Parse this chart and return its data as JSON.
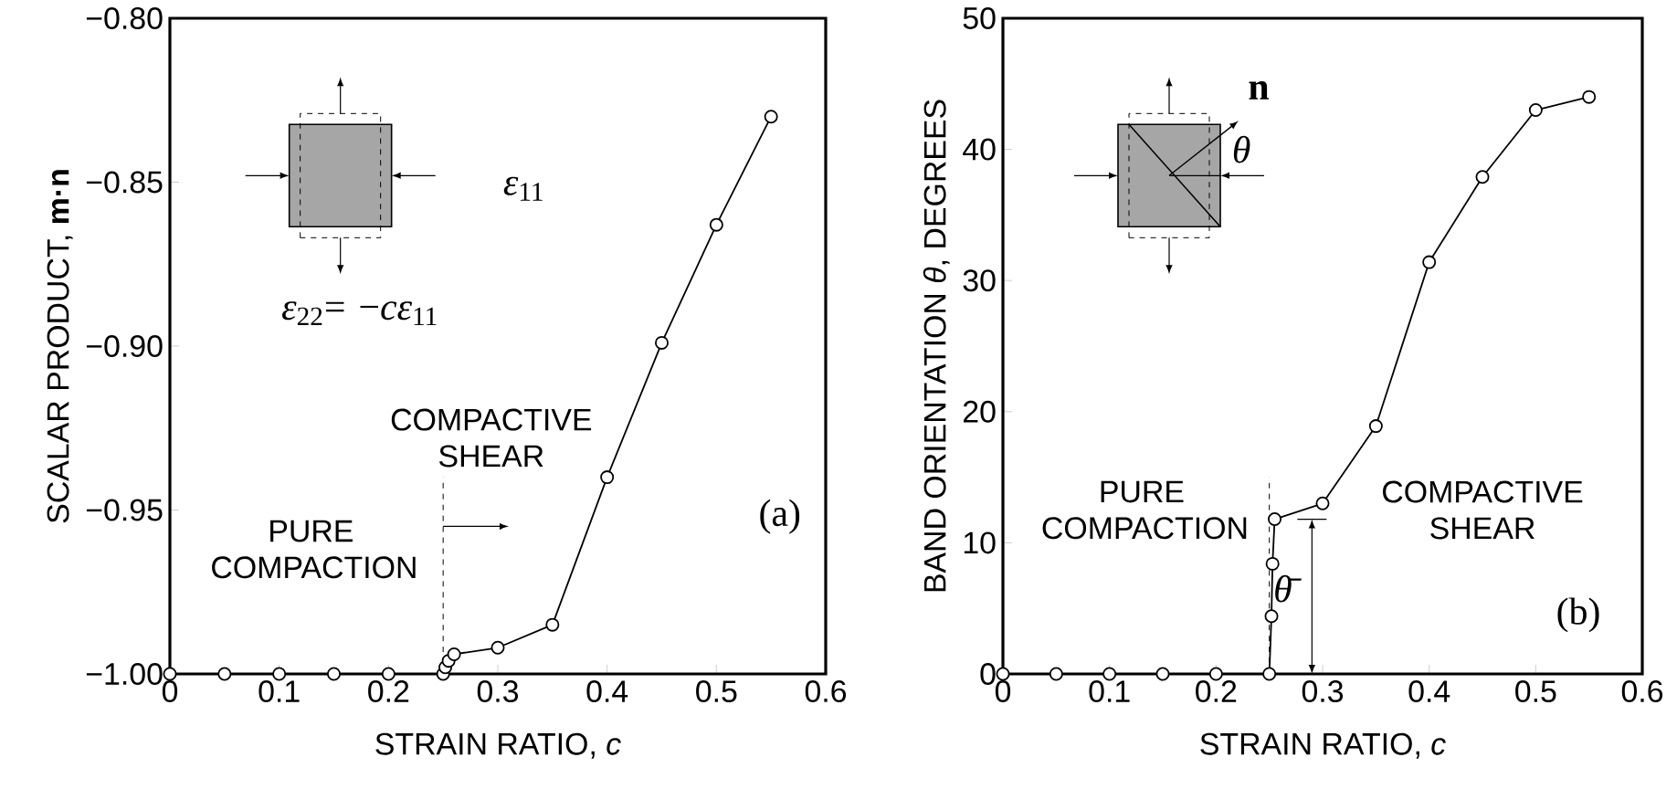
{
  "chart_data": [
    {
      "type": "line",
      "xlabel": "STRAIN RATIO, *c*",
      "ylabel": "SCALAR PRODUCT, **m·n**",
      "x": [
        0,
        0.05,
        0.1,
        0.15,
        0.2,
        0.25,
        0.252,
        0.255,
        0.26,
        0.3,
        0.35,
        0.4,
        0.45,
        0.5,
        0.55
      ],
      "series": [
        {
          "color": "#000000",
          "values": [
            -1.0,
            -1.0,
            -1.0,
            -1.0,
            -1.0,
            -1.0,
            -0.998,
            -0.996,
            -0.994,
            -0.992,
            -0.985,
            -0.94,
            -0.899,
            -0.863,
            -0.83
          ]
        }
      ],
      "xlim": [
        0,
        0.6
      ],
      "ylim": [
        -1.0,
        -0.8
      ],
      "xticks": [
        0,
        0.1,
        0.2,
        0.3,
        0.4,
        0.5,
        0.6
      ],
      "yticks": [
        {
          "value": -1.0,
          "label": "−1.00"
        },
        {
          "value": -0.95,
          "label": "−0.95"
        },
        {
          "value": -0.9,
          "label": "−0.90"
        },
        {
          "value": -0.85,
          "label": "−0.85"
        },
        {
          "value": -0.8,
          "label": "−0.80"
        }
      ],
      "ref_lines": [
        {
          "axis": "x",
          "value": 0.25,
          "line_style": "dashed"
        }
      ],
      "marker": "circle",
      "line_style": "solid",
      "annotations": [
        "PURE COMPACTION",
        "COMPACTIVE SHEAR",
        "(a)",
        "*ε*$_{11}$",
        "*ε*$_{22}$= −*cε*$_{11}$"
      ]
    },
    {
      "type": "line",
      "xlabel": "STRAIN RATIO, *c*",
      "ylabel": "BAND ORIENTATION *θ*, DEGREES",
      "x": [
        0,
        0.05,
        0.1,
        0.15,
        0.2,
        0.25,
        0.252,
        0.253,
        0.255,
        0.3,
        0.35,
        0.4,
        0.45,
        0.5,
        0.55
      ],
      "series": [
        {
          "color": "#000000",
          "values": [
            0,
            0,
            0,
            0,
            0,
            0,
            4.4,
            8.4,
            11.8,
            13.0,
            18.9,
            31.4,
            37.9,
            43.0,
            44.0
          ]
        }
      ],
      "xlim": [
        0,
        0.6
      ],
      "ylim": [
        0,
        50
      ],
      "xticks": [
        0,
        0.1,
        0.2,
        0.3,
        0.4,
        0.5,
        0.6
      ],
      "yticks": [
        0,
        10,
        20,
        30,
        40,
        50
      ],
      "ref_lines": [
        {
          "axis": "x",
          "value": 0.25,
          "line_style": "dashed"
        }
      ],
      "marker": "circle",
      "line_style": "solid",
      "annotations": [
        "PURE COMPACTION",
        "COMPACTIVE SHEAR",
        "(b)",
        "**n**",
        "*θ*",
        "*θ̄*"
      ]
    }
  ]
}
